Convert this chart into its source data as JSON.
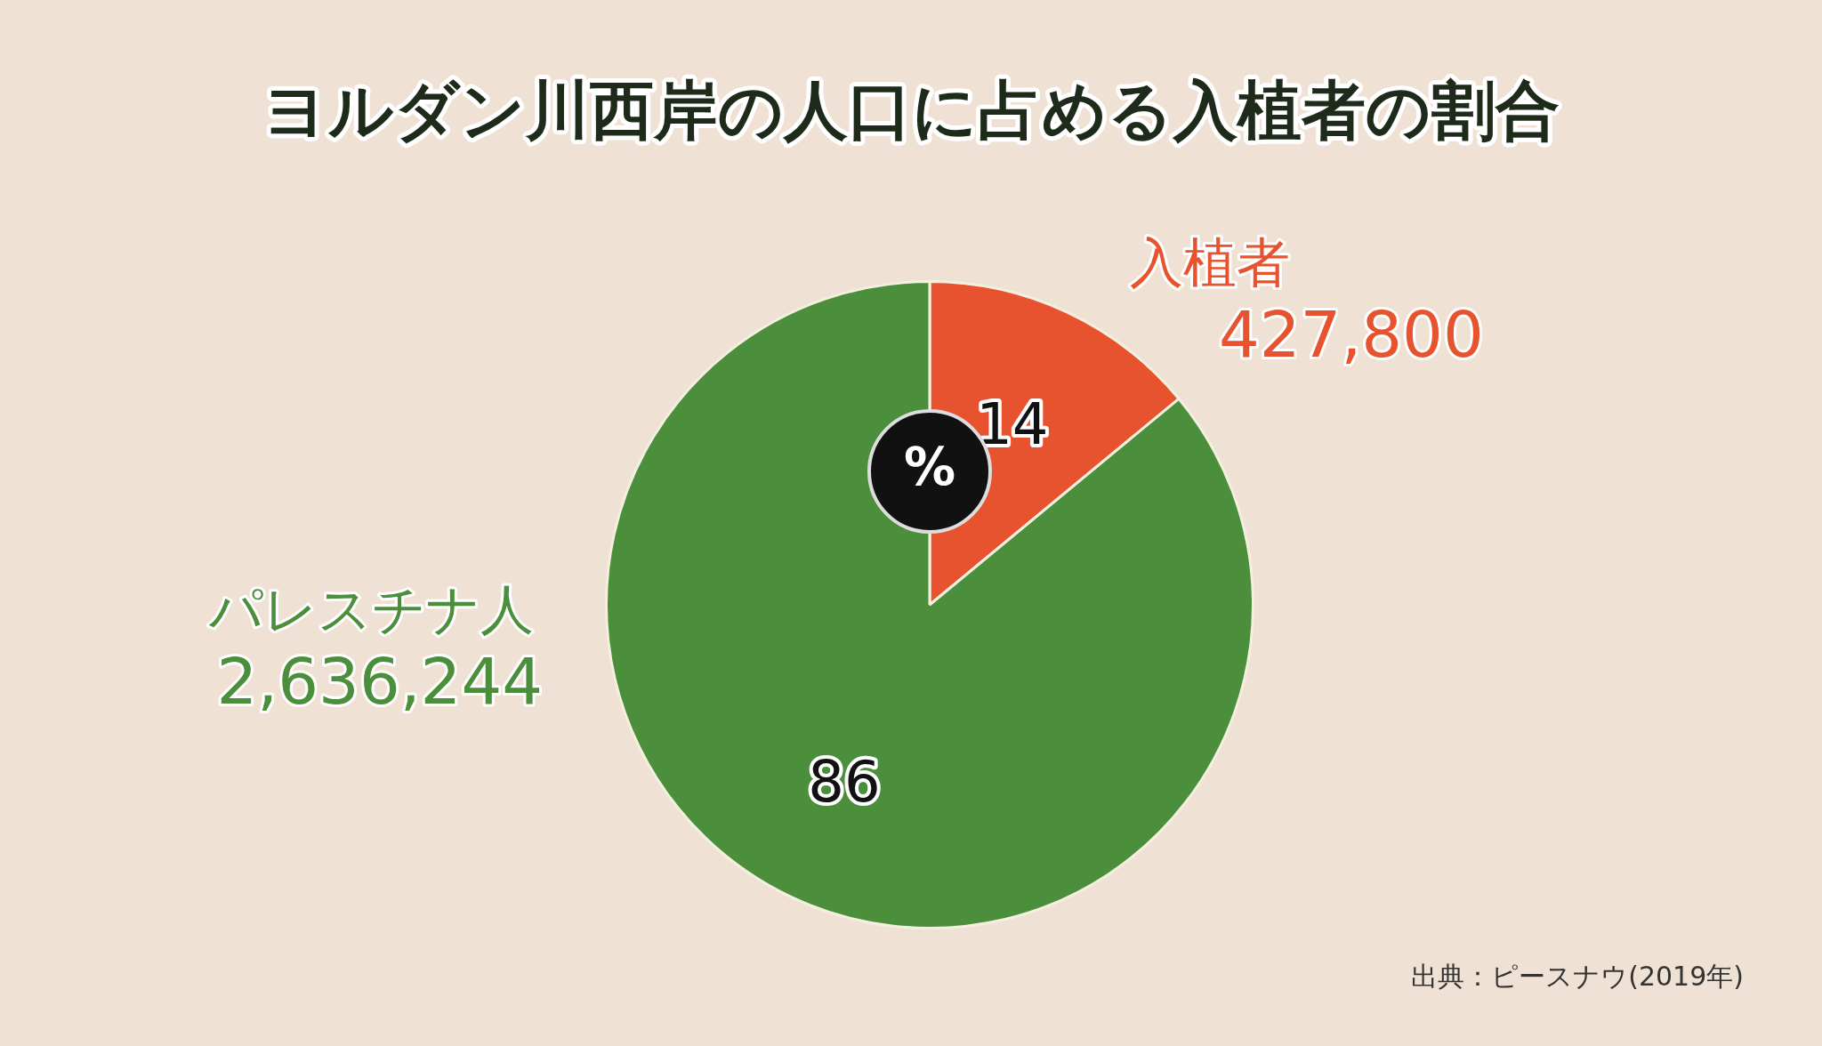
{
  "chart_data": {
    "type": "pie",
    "title": "ヨルダン川西岸の人口に占める入植者の割合",
    "categories": [
      "入植者",
      "パレスチナ人"
    ],
    "values": [
      14,
      86
    ],
    "colors": [
      "#e8532f",
      "#4b8e3b"
    ],
    "data_labels": true,
    "legend": false,
    "annotations": [
      "427,800",
      "2,636,244",
      "%",
      "出典：ピースナウ(2019年)"
    ]
  }
}
